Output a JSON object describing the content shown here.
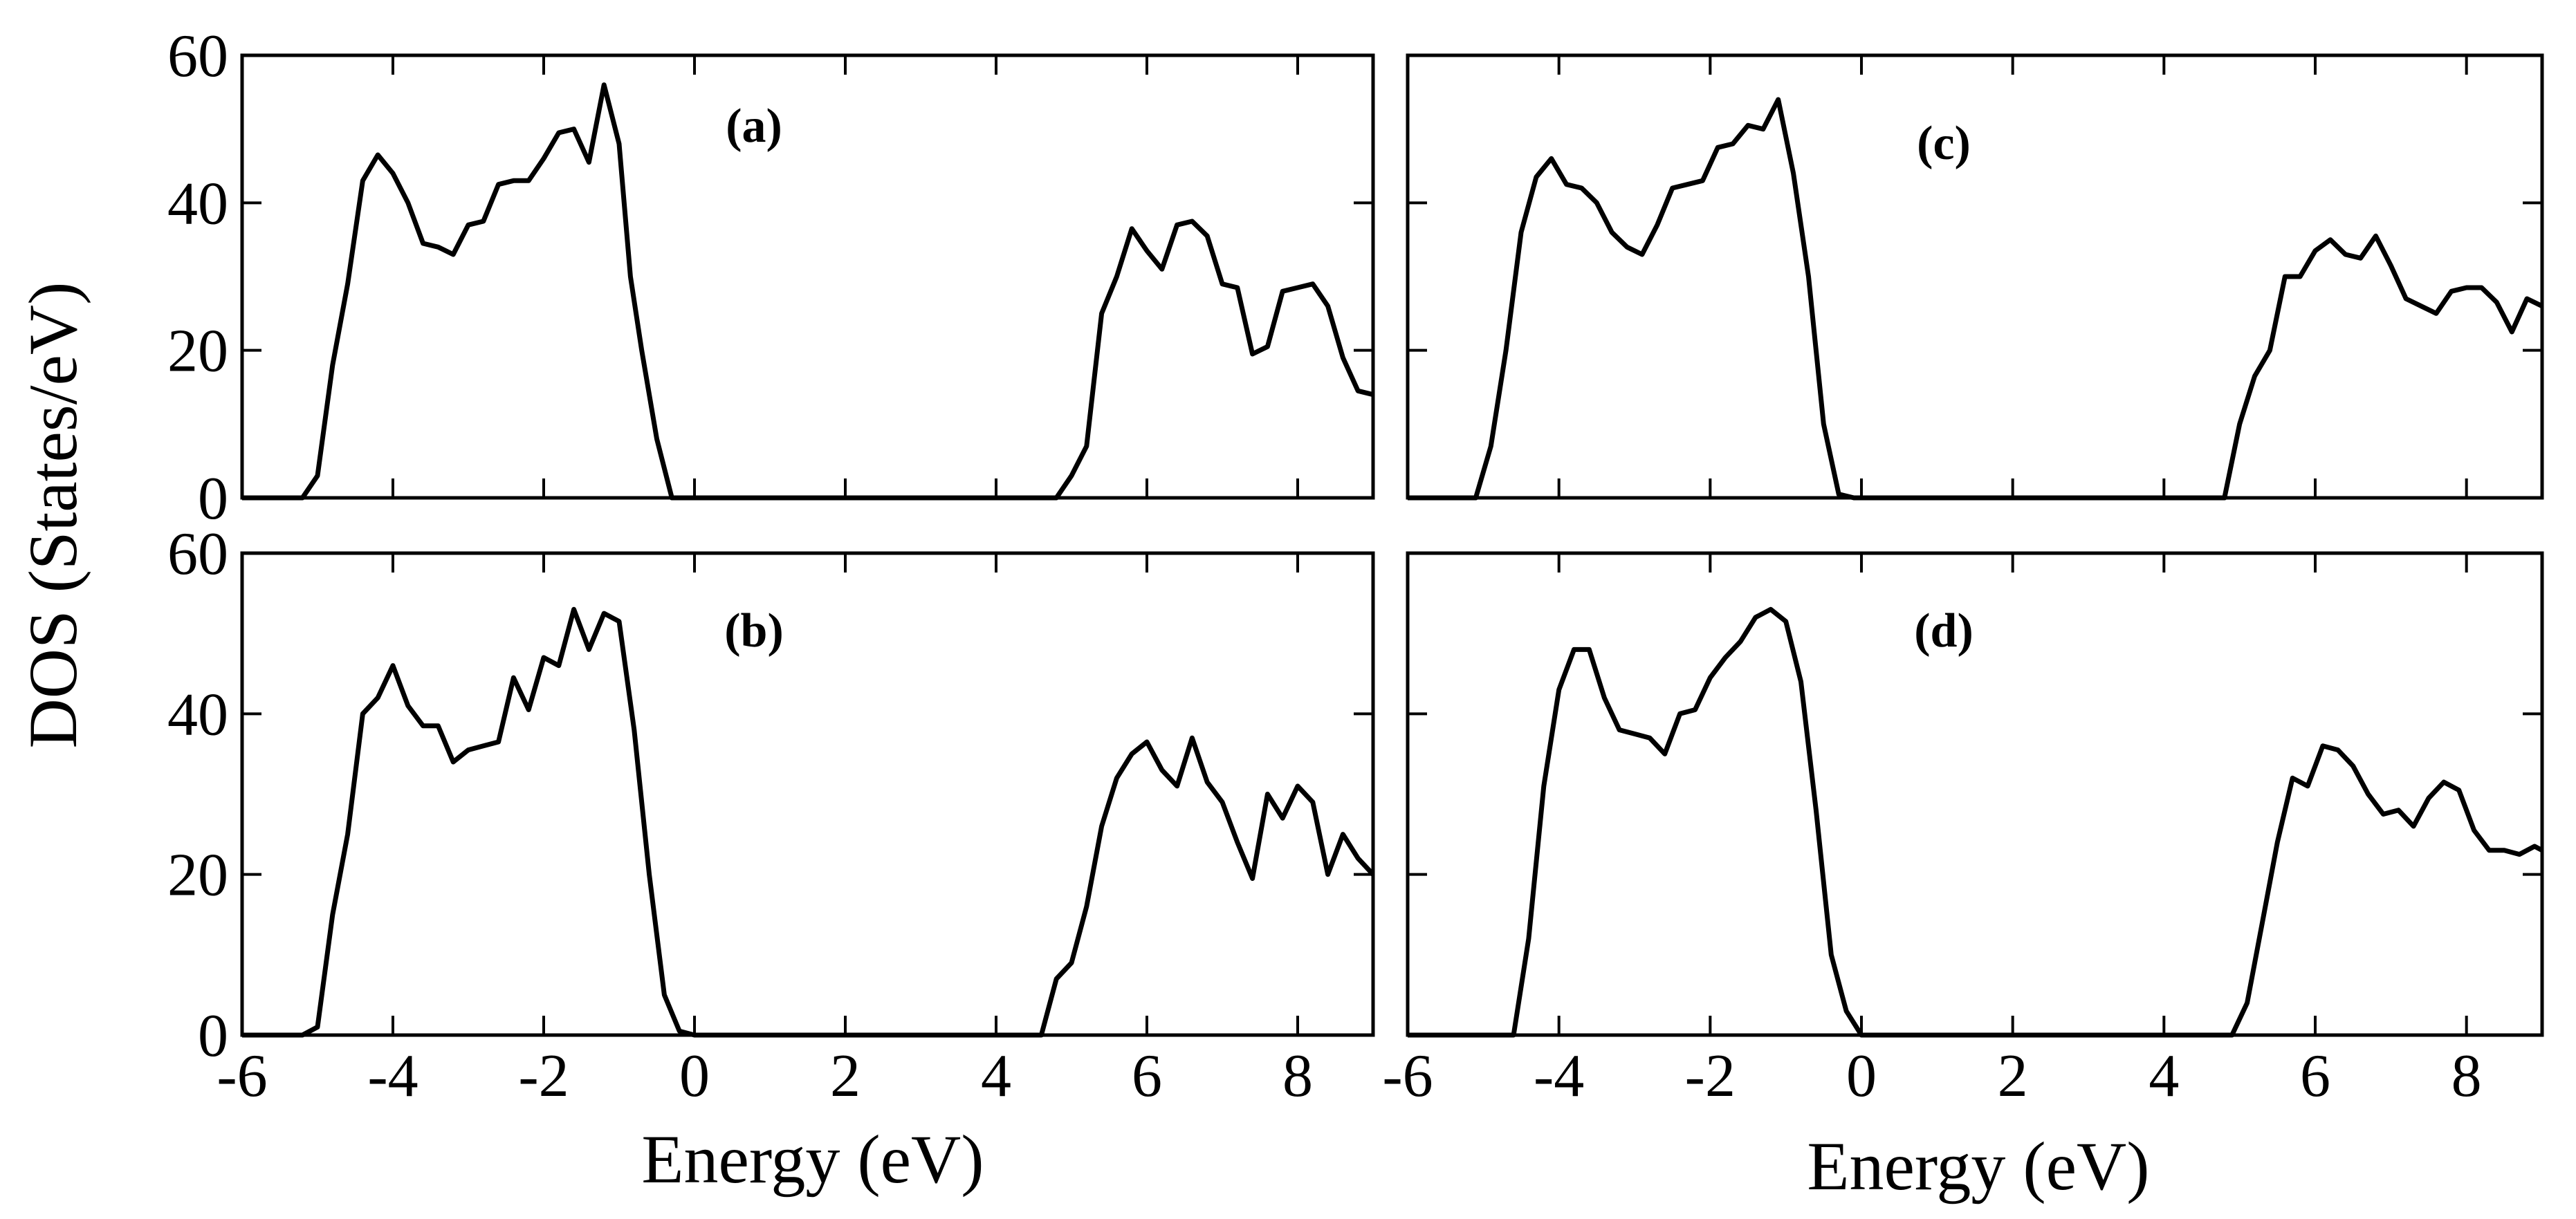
{
  "figure": {
    "ylabel": "DOS (States/eV)",
    "xlabel_left": "Energy (eV)",
    "xlabel_right": "Energy (eV)"
  },
  "chart_data": [
    {
      "type": "line",
      "panel_label": "(a)",
      "xlabel": "Energy (eV)",
      "ylabel": "DOS (States/eV)",
      "xlim": [
        -6,
        9
      ],
      "ylim": [
        0,
        60
      ],
      "xticks": [
        -6,
        -4,
        -2,
        0,
        2,
        4,
        6,
        8
      ],
      "yticks": [
        0,
        20,
        40,
        60
      ],
      "x": [
        -6.0,
        -5.2,
        -5.0,
        -4.8,
        -4.6,
        -4.4,
        -4.2,
        -4.0,
        -3.8,
        -3.6,
        -3.4,
        -3.2,
        -3.0,
        -2.8,
        -2.6,
        -2.4,
        -2.2,
        -2.0,
        -1.8,
        -1.6,
        -1.4,
        -1.2,
        -1.0,
        -0.85,
        -0.7,
        -0.5,
        -0.3,
        -0.1,
        0.0,
        0.2,
        4.8,
        5.0,
        5.2,
        5.4,
        5.6,
        5.8,
        6.0,
        6.2,
        6.4,
        6.6,
        6.8,
        7.0,
        7.2,
        7.4,
        7.6,
        7.8,
        8.0,
        8.2,
        8.4,
        8.6,
        8.8,
        9.0
      ],
      "y": [
        0,
        0,
        3,
        18,
        29,
        43,
        46.5,
        44,
        40,
        34.5,
        34,
        33,
        37,
        37.5,
        42.5,
        43,
        43,
        46,
        49.5,
        50,
        45.5,
        56,
        48,
        30,
        20,
        8,
        0,
        0,
        0,
        0,
        0,
        3,
        7,
        25,
        30,
        36.5,
        33.5,
        31,
        37,
        37.5,
        35.5,
        29,
        28.5,
        19.5,
        20.5,
        28,
        28.5,
        29,
        26,
        19,
        14.5,
        14
      ]
    },
    {
      "type": "line",
      "panel_label": "(b)",
      "xlabel": "Energy (eV)",
      "ylabel": "DOS (States/eV)",
      "xlim": [
        -6,
        9
      ],
      "ylim": [
        0,
        60
      ],
      "xticks": [
        -6,
        -4,
        -2,
        0,
        2,
        4,
        6,
        8
      ],
      "yticks": [
        0,
        20,
        40,
        60
      ],
      "x": [
        -6.0,
        -5.2,
        -5.0,
        -4.8,
        -4.6,
        -4.4,
        -4.2,
        -4.0,
        -3.8,
        -3.6,
        -3.4,
        -3.2,
        -3.0,
        -2.8,
        -2.6,
        -2.4,
        -2.2,
        -2.0,
        -1.8,
        -1.6,
        -1.4,
        -1.2,
        -1.0,
        -0.8,
        -0.6,
        -0.4,
        -0.2,
        0.0,
        0.2,
        4.6,
        4.8,
        5.0,
        5.2,
        5.4,
        5.6,
        5.8,
        6.0,
        6.2,
        6.4,
        6.6,
        6.8,
        7.0,
        7.2,
        7.4,
        7.6,
        7.8,
        8.0,
        8.2,
        8.4,
        8.6,
        8.8,
        9.0
      ],
      "y": [
        0,
        0,
        1,
        15,
        25,
        40,
        42,
        46,
        41,
        38.5,
        38.5,
        34,
        35.5,
        36,
        36.5,
        44.5,
        40.5,
        47,
        46,
        53,
        48,
        52.5,
        51.5,
        38,
        20,
        5,
        0.5,
        0,
        0,
        0,
        7,
        9,
        16,
        26,
        32,
        35,
        36.5,
        33,
        31,
        37,
        31.5,
        29,
        24,
        19.5,
        30,
        27,
        31,
        29,
        20,
        25,
        22,
        20
      ]
    },
    {
      "type": "line",
      "panel_label": "(c)",
      "xlabel": "Energy (eV)",
      "ylabel": "DOS (States/eV)",
      "xlim": [
        -6,
        9
      ],
      "ylim": [
        0,
        60
      ],
      "xticks": [
        -6,
        -4,
        -2,
        0,
        2,
        4,
        6,
        8
      ],
      "yticks": [
        0,
        20,
        40,
        60
      ],
      "x": [
        -6.0,
        -5.1,
        -4.9,
        -4.7,
        -4.5,
        -4.3,
        -4.1,
        -3.9,
        -3.7,
        -3.5,
        -3.3,
        -3.1,
        -2.9,
        -2.7,
        -2.5,
        -2.3,
        -2.1,
        -1.9,
        -1.7,
        -1.5,
        -1.3,
        -1.1,
        -0.9,
        -0.7,
        -0.5,
        -0.3,
        -0.1,
        0.0,
        0.2,
        4.8,
        5.0,
        5.2,
        5.4,
        5.6,
        5.8,
        6.0,
        6.2,
        6.4,
        6.6,
        6.8,
        7.0,
        7.2,
        7.4,
        7.6,
        7.8,
        8.0,
        8.2,
        8.4,
        8.6,
        8.8,
        9.0
      ],
      "y": [
        0,
        0,
        7,
        20,
        36,
        43.5,
        46,
        42.5,
        42,
        40,
        36,
        34,
        33,
        37,
        42,
        42.5,
        43,
        47.5,
        48,
        50.5,
        50,
        54,
        44,
        30,
        10,
        0.5,
        0,
        0,
        0,
        0,
        10,
        16.5,
        20,
        30,
        30,
        33.5,
        35,
        33,
        32.5,
        35.5,
        31.5,
        27,
        26,
        25,
        28,
        28.5,
        28.5,
        26.5,
        22.5,
        27,
        26
      ]
    },
    {
      "type": "line",
      "panel_label": "(d)",
      "xlabel": "Energy (eV)",
      "ylabel": "DOS (States/eV)",
      "xlim": [
        -6,
        9
      ],
      "ylim": [
        0,
        60
      ],
      "xticks": [
        -6,
        -4,
        -2,
        0,
        2,
        4,
        6,
        8
      ],
      "yticks": [
        0,
        20,
        40,
        60
      ],
      "x": [
        -6.0,
        -4.6,
        -4.4,
        -4.2,
        -4.0,
        -3.8,
        -3.6,
        -3.4,
        -3.2,
        -3.0,
        -2.8,
        -2.6,
        -2.4,
        -2.2,
        -2.0,
        -1.8,
        -1.6,
        -1.4,
        -1.2,
        -1.0,
        -0.8,
        -0.6,
        -0.4,
        -0.2,
        0.0,
        0.2,
        4.9,
        5.1,
        5.3,
        5.5,
        5.7,
        5.9,
        6.1,
        6.3,
        6.5,
        6.7,
        6.9,
        7.1,
        7.3,
        7.5,
        7.7,
        7.9,
        8.1,
        8.3,
        8.5,
        8.7,
        8.9,
        9.0
      ],
      "y": [
        0,
        0,
        12,
        31,
        43,
        48,
        48,
        42,
        38,
        37.5,
        37,
        35,
        40,
        40.5,
        44.5,
        47,
        49,
        52,
        53,
        51.5,
        44,
        28,
        10,
        3,
        0,
        0,
        0,
        4,
        14,
        24,
        32,
        31,
        36,
        35.5,
        33.5,
        30,
        27.5,
        28,
        26,
        29.5,
        31.5,
        30.5,
        25.5,
        23,
        23,
        22.5,
        23.5,
        23
      ]
    }
  ]
}
